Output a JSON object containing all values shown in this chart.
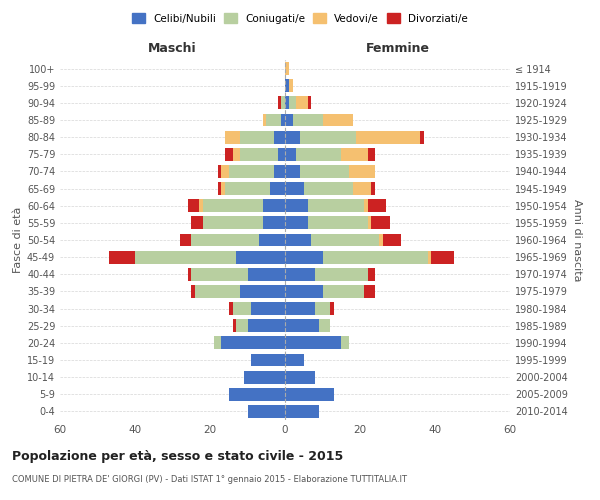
{
  "age_groups": [
    "0-4",
    "5-9",
    "10-14",
    "15-19",
    "20-24",
    "25-29",
    "30-34",
    "35-39",
    "40-44",
    "45-49",
    "50-54",
    "55-59",
    "60-64",
    "65-69",
    "70-74",
    "75-79",
    "80-84",
    "85-89",
    "90-94",
    "95-99",
    "100+"
  ],
  "birth_years": [
    "2010-2014",
    "2005-2009",
    "2000-2004",
    "1995-1999",
    "1990-1994",
    "1985-1989",
    "1980-1984",
    "1975-1979",
    "1970-1974",
    "1965-1969",
    "1960-1964",
    "1955-1959",
    "1950-1954",
    "1945-1949",
    "1940-1944",
    "1935-1939",
    "1930-1934",
    "1925-1929",
    "1920-1924",
    "1915-1919",
    "≤ 1914"
  ],
  "colors": {
    "celibi": "#4472c4",
    "coniugati": "#b8cfa0",
    "vedovi": "#f5c070",
    "divorziati": "#cc2222"
  },
  "male": {
    "celibi": [
      10,
      15,
      11,
      9,
      17,
      10,
      9,
      12,
      10,
      13,
      7,
      6,
      6,
      4,
      3,
      2,
      3,
      1,
      0,
      0,
      0
    ],
    "coniugati": [
      0,
      0,
      0,
      0,
      2,
      3,
      5,
      12,
      15,
      27,
      18,
      16,
      16,
      12,
      12,
      10,
      9,
      4,
      1,
      0,
      0
    ],
    "vedovi": [
      0,
      0,
      0,
      0,
      0,
      0,
      0,
      0,
      0,
      0,
      0,
      0,
      1,
      1,
      2,
      2,
      4,
      1,
      0,
      0,
      0
    ],
    "divorziati": [
      0,
      0,
      0,
      0,
      0,
      1,
      1,
      1,
      1,
      7,
      3,
      3,
      3,
      1,
      1,
      2,
      0,
      0,
      1,
      0,
      0
    ]
  },
  "female": {
    "celibi": [
      9,
      13,
      8,
      5,
      15,
      9,
      8,
      10,
      8,
      10,
      7,
      6,
      6,
      5,
      4,
      3,
      4,
      2,
      1,
      1,
      0
    ],
    "coniugati": [
      0,
      0,
      0,
      0,
      2,
      3,
      4,
      11,
      14,
      28,
      18,
      16,
      15,
      13,
      13,
      12,
      15,
      8,
      2,
      0,
      0
    ],
    "vedovi": [
      0,
      0,
      0,
      0,
      0,
      0,
      0,
      0,
      0,
      1,
      1,
      1,
      1,
      5,
      7,
      7,
      17,
      8,
      3,
      1,
      1
    ],
    "divorziati": [
      0,
      0,
      0,
      0,
      0,
      0,
      1,
      3,
      2,
      6,
      5,
      5,
      5,
      1,
      0,
      2,
      1,
      0,
      1,
      0,
      0
    ]
  },
  "xlim": 60,
  "title": "Popolazione per età, sesso e stato civile - 2015",
  "subtitle": "COMUNE DI PIETRA DE' GIORGI (PV) - Dati ISTAT 1° gennaio 2015 - Elaborazione TUTTITALIA.IT",
  "xlabel_left": "Maschi",
  "xlabel_right": "Femmine",
  "ylabel_left": "Fasce di età",
  "ylabel_right": "Anni di nascita",
  "legend_labels": [
    "Celibi/Nubili",
    "Coniugati/e",
    "Vedovi/e",
    "Divorziati/e"
  ],
  "background_color": "#ffffff",
  "bar_height": 0.75
}
